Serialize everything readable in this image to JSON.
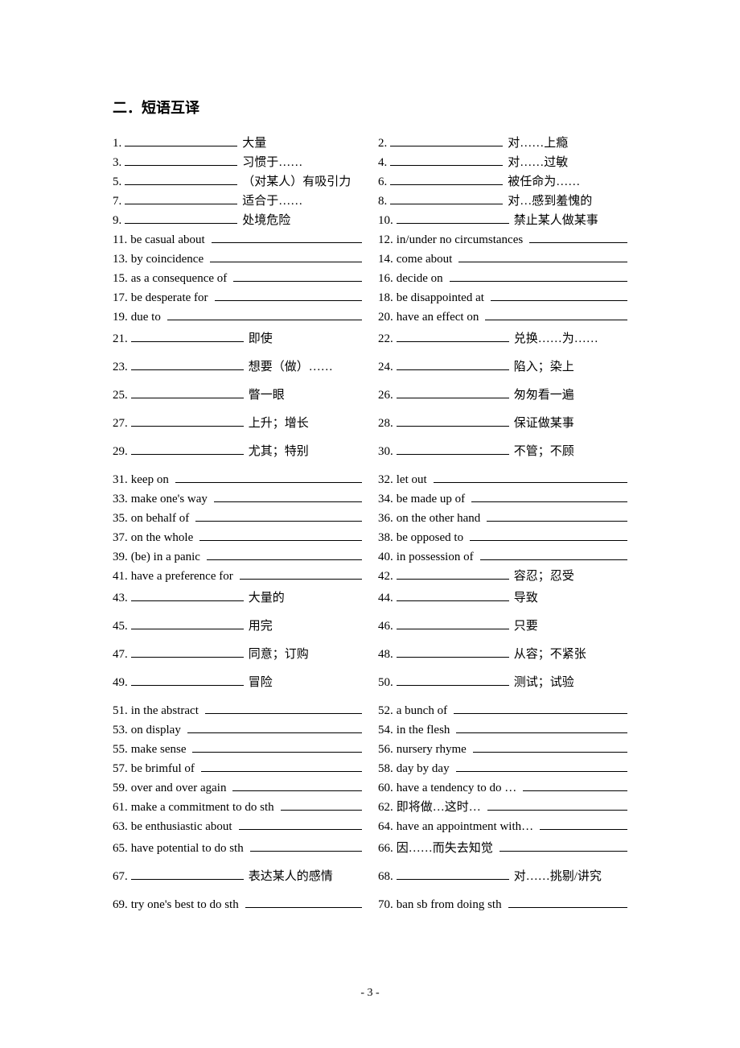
{
  "section_title": "二．短语互译",
  "page_number": "- 3 -",
  "items": [
    {
      "n": "1.",
      "mode": "blank_then",
      "suffix": "大量",
      "sp": "tight"
    },
    {
      "n": "2.",
      "mode": "blank_then",
      "suffix": "对……上瘾",
      "sp": "tight"
    },
    {
      "n": "3.",
      "mode": "blank_then",
      "suffix": "习惯于……",
      "sp": "tight"
    },
    {
      "n": "4.",
      "mode": "blank_then",
      "suffix": "对……过敏",
      "sp": "tight"
    },
    {
      "n": "5.",
      "mode": "blank_then",
      "suffix": "（对某人）有吸引力",
      "sp": "tight"
    },
    {
      "n": "6.",
      "mode": "blank_then",
      "suffix": "被任命为……",
      "sp": "tight"
    },
    {
      "n": "7.",
      "mode": "blank_then",
      "suffix": "适合于……",
      "sp": "tight"
    },
    {
      "n": "8.",
      "mode": "blank_then",
      "suffix": "对…感到羞愧的",
      "sp": "tight"
    },
    {
      "n": "9.",
      "mode": "blank_then",
      "suffix": "处境危险",
      "sp": "tight"
    },
    {
      "n": "10.",
      "mode": "blank_then",
      "suffix": "禁止某人做某事",
      "sp": "tight"
    },
    {
      "n": "11.",
      "mode": "text_then",
      "prefix": "be casual about",
      "sp": "tight"
    },
    {
      "n": "12.",
      "mode": "text_then",
      "prefix": "in/under no circumstances",
      "sp": "tight"
    },
    {
      "n": "13.",
      "mode": "text_then",
      "prefix": "by coincidence",
      "sp": "tight"
    },
    {
      "n": "14.",
      "mode": "text_then",
      "prefix": "come about",
      "sp": "tight"
    },
    {
      "n": "15.",
      "mode": "text_then",
      "prefix": "as a consequence of",
      "sp": "tight"
    },
    {
      "n": "16.",
      "mode": "text_then",
      "prefix": "decide on",
      "sp": "tight"
    },
    {
      "n": "17.",
      "mode": "text_then",
      "prefix": "be desperate for",
      "sp": "tight"
    },
    {
      "n": "18.",
      "mode": "text_then",
      "prefix": "be disappointed at",
      "sp": "tight"
    },
    {
      "n": "19.",
      "mode": "text_then",
      "prefix": "due to",
      "sp": "med"
    },
    {
      "n": "20.",
      "mode": "text_then",
      "prefix": "have an effect on",
      "sp": "med"
    },
    {
      "n": "21.",
      "mode": "blank_then",
      "suffix": "即使",
      "sp": "loose"
    },
    {
      "n": "22.",
      "mode": "blank_then",
      "suffix": "兑换……为……",
      "sp": "loose"
    },
    {
      "n": "23.",
      "mode": "blank_then",
      "suffix": "想要（做）……",
      "sp": "loose"
    },
    {
      "n": "24.",
      "mode": "blank_then",
      "suffix": "陷入；染上",
      "sp": "loose"
    },
    {
      "n": "25.",
      "mode": "blank_then",
      "suffix": "瞥一眼",
      "sp": "loose"
    },
    {
      "n": "26.",
      "mode": "blank_then",
      "suffix": "匆匆看一遍",
      "sp": "loose"
    },
    {
      "n": "27.",
      "mode": "blank_then",
      "suffix": "上升；增长",
      "sp": "loose"
    },
    {
      "n": "28.",
      "mode": "blank_then",
      "suffix": "保证做某事",
      "sp": "loose"
    },
    {
      "n": "29.",
      "mode": "blank_then",
      "suffix": "尤其；特别",
      "sp": "loose"
    },
    {
      "n": "30.",
      "mode": "blank_then",
      "suffix": "不管；不顾",
      "sp": "loose"
    },
    {
      "n": "31.",
      "mode": "text_then",
      "prefix": "keep on",
      "sp": "tight"
    },
    {
      "n": "32.",
      "mode": "text_then",
      "prefix": "let out",
      "sp": "tight"
    },
    {
      "n": "33.",
      "mode": "text_then",
      "prefix": "make one's way",
      "sp": "tight"
    },
    {
      "n": "34.",
      "mode": "text_then",
      "prefix": "be made up of",
      "sp": "tight"
    },
    {
      "n": "35.",
      "mode": "text_then",
      "prefix": "on behalf of",
      "sp": "tight"
    },
    {
      "n": "36.",
      "mode": "text_then",
      "prefix": "on the other hand",
      "sp": "tight"
    },
    {
      "n": "37.",
      "mode": "text_then",
      "prefix": "on the whole",
      "sp": "tight"
    },
    {
      "n": "38.",
      "mode": "text_then",
      "prefix": "be opposed to",
      "sp": "tight"
    },
    {
      "n": "39.",
      "mode": "text_then",
      "prefix": "(be) in a panic",
      "sp": "tight"
    },
    {
      "n": "40.",
      "mode": "text_then",
      "prefix": "in possession of",
      "sp": "tight"
    },
    {
      "n": "41.",
      "mode": "text_then",
      "prefix": "have a preference for",
      "sp": "med"
    },
    {
      "n": "42.",
      "mode": "blank_then",
      "suffix": "容忍；忍受",
      "sp": "med"
    },
    {
      "n": "43.",
      "mode": "blank_then",
      "suffix": "大量的",
      "sp": "loose"
    },
    {
      "n": "44.",
      "mode": "blank_then",
      "suffix": "导致",
      "sp": "loose"
    },
    {
      "n": "45.",
      "mode": "blank_then",
      "suffix": "用完",
      "sp": "loose"
    },
    {
      "n": "46.",
      "mode": "blank_then",
      "suffix": "只要",
      "sp": "loose"
    },
    {
      "n": "47.",
      "mode": "blank_then",
      "suffix": "同意；订购",
      "sp": "loose"
    },
    {
      "n": "48.",
      "mode": "blank_then",
      "suffix": "从容；不紧张",
      "sp": "loose"
    },
    {
      "n": "49.",
      "mode": "blank_then",
      "suffix": "冒险",
      "sp": "loose"
    },
    {
      "n": "50.",
      "mode": "blank_then",
      "suffix": "测试；试验",
      "sp": "loose"
    },
    {
      "n": "51.",
      "mode": "text_then",
      "prefix": "in the abstract",
      "sp": "tight"
    },
    {
      "n": "52.",
      "mode": "text_then",
      "prefix": "a bunch of",
      "sp": "tight"
    },
    {
      "n": "53.",
      "mode": "text_then",
      "prefix": "on display",
      "sp": "tight"
    },
    {
      "n": "54.",
      "mode": "text_then",
      "prefix": "in the flesh",
      "sp": "tight"
    },
    {
      "n": "55.",
      "mode": "text_then",
      "prefix": "make sense",
      "sp": "tight"
    },
    {
      "n": "56.",
      "mode": "text_then",
      "prefix": "nursery rhyme",
      "sp": "tight"
    },
    {
      "n": "57.",
      "mode": "text_then",
      "prefix": "be brimful of",
      "sp": "tight"
    },
    {
      "n": "58.",
      "mode": "text_then",
      "prefix": "day by day",
      "sp": "tight"
    },
    {
      "n": "59.",
      "mode": "text_then",
      "prefix": "over and over again",
      "sp": "tight"
    },
    {
      "n": "60.",
      "mode": "text_then",
      "prefix": "have a tendency to do  …",
      "sp": "tight"
    },
    {
      "n": "61.",
      "mode": "text_then",
      "prefix": "make a commitment to do sth",
      "sp": "tight"
    },
    {
      "n": "62.",
      "mode": "text_then",
      "prefix": "即将做…这时…",
      "sp": "tight"
    },
    {
      "n": "63.",
      "mode": "text_then",
      "prefix": "be enthusiastic about",
      "sp": "med"
    },
    {
      "n": "64.",
      "mode": "text_then",
      "prefix": "have an appointment with…",
      "sp": "med"
    },
    {
      "n": "65.",
      "mode": "text_then",
      "prefix": "have potential to do sth",
      "sp": "loose"
    },
    {
      "n": "66.",
      "mode": "text_then",
      "prefix": "因……而失去知觉",
      "sp": "loose"
    },
    {
      "n": "67.",
      "mode": "blank_then",
      "suffix": "表达某人的感情",
      "sp": "loose"
    },
    {
      "n": "68.",
      "mode": "blank_then",
      "suffix": "对……挑剔/讲究",
      "sp": "loose"
    },
    {
      "n": "69.",
      "mode": "text_then",
      "prefix": "try one's best to do sth",
      "sp": "loose"
    },
    {
      "n": "70.",
      "mode": "text_then",
      "prefix": "ban sb from doing sth",
      "sp": "loose"
    }
  ]
}
